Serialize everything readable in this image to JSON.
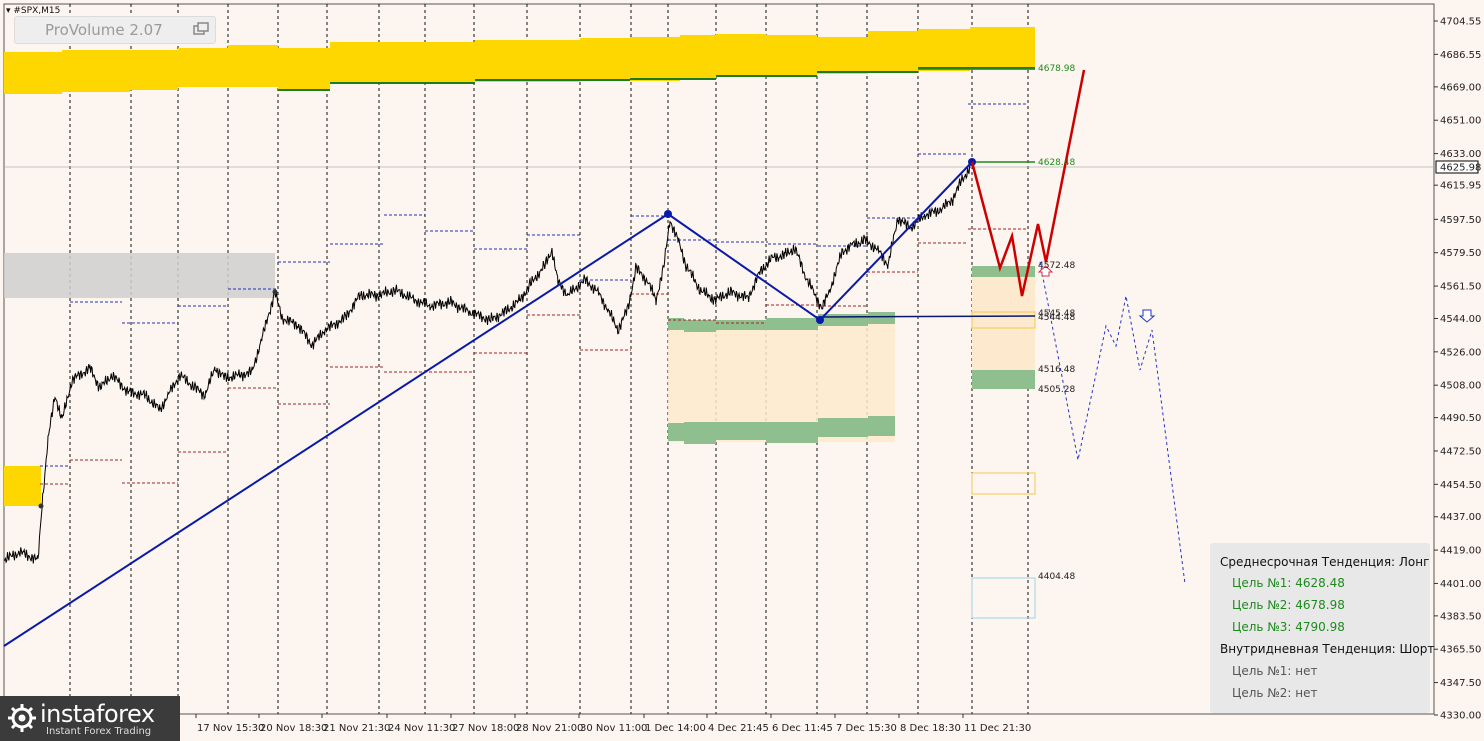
{
  "symbol": "#SPX,M15",
  "indicator": {
    "name": "ProVolume 2.07"
  },
  "current_price": "4625.98",
  "price_axis": [
    "4704.55",
    "4686.55",
    "4669.00",
    "4651.00",
    "4633.00",
    "4615.95",
    "4597.50",
    "4579.50",
    "4561.50",
    "4544.00",
    "4526.00",
    "4508.00",
    "4490.50",
    "4472.50",
    "4454.50",
    "4437.00",
    "4419.00",
    "4401.00",
    "4383.50",
    "4365.50",
    "4347.50",
    "4330.00"
  ],
  "time_axis": [
    "17 Nov 15:30",
    "20 Nov 18:30",
    "21 Nov 21:30",
    "24 Nov 11:30",
    "27 Nov 18:00",
    "28 Nov 21:00",
    "30 Nov 11:00",
    "1 Dec 14:00",
    "4 Dec 21:45",
    "6 Dec 11:45",
    "7 Dec 15:30",
    "8 Dec 18:30",
    "11 Dec 21:30"
  ],
  "level_labels": [
    "4678.98",
    "4628.48",
    "4572.48",
    "4545.48",
    "4544.48",
    "4516.48",
    "4505.28",
    "4404.48"
  ],
  "panel": {
    "medium_title": "Среднесрочная Тенденция: Лонг",
    "medium_targets": [
      "Цель №1: 4628.48",
      "Цель №2: 4678.98",
      "Цель №3: 4790.98"
    ],
    "intraday_title": "Внутридневная Тенденция: Шорт",
    "intraday_targets": [
      "Цель №1: нет",
      "Цель №2: нет"
    ]
  },
  "logo": {
    "name": "instaforex",
    "tagline": "Instant Forex Trading"
  },
  "colors": {
    "background": "#fdf5ef",
    "volume_band": "#ffd700",
    "long_target": "#1e8a1e",
    "zigzag": "#0a1aa8",
    "forecast": "#cc0000"
  }
}
